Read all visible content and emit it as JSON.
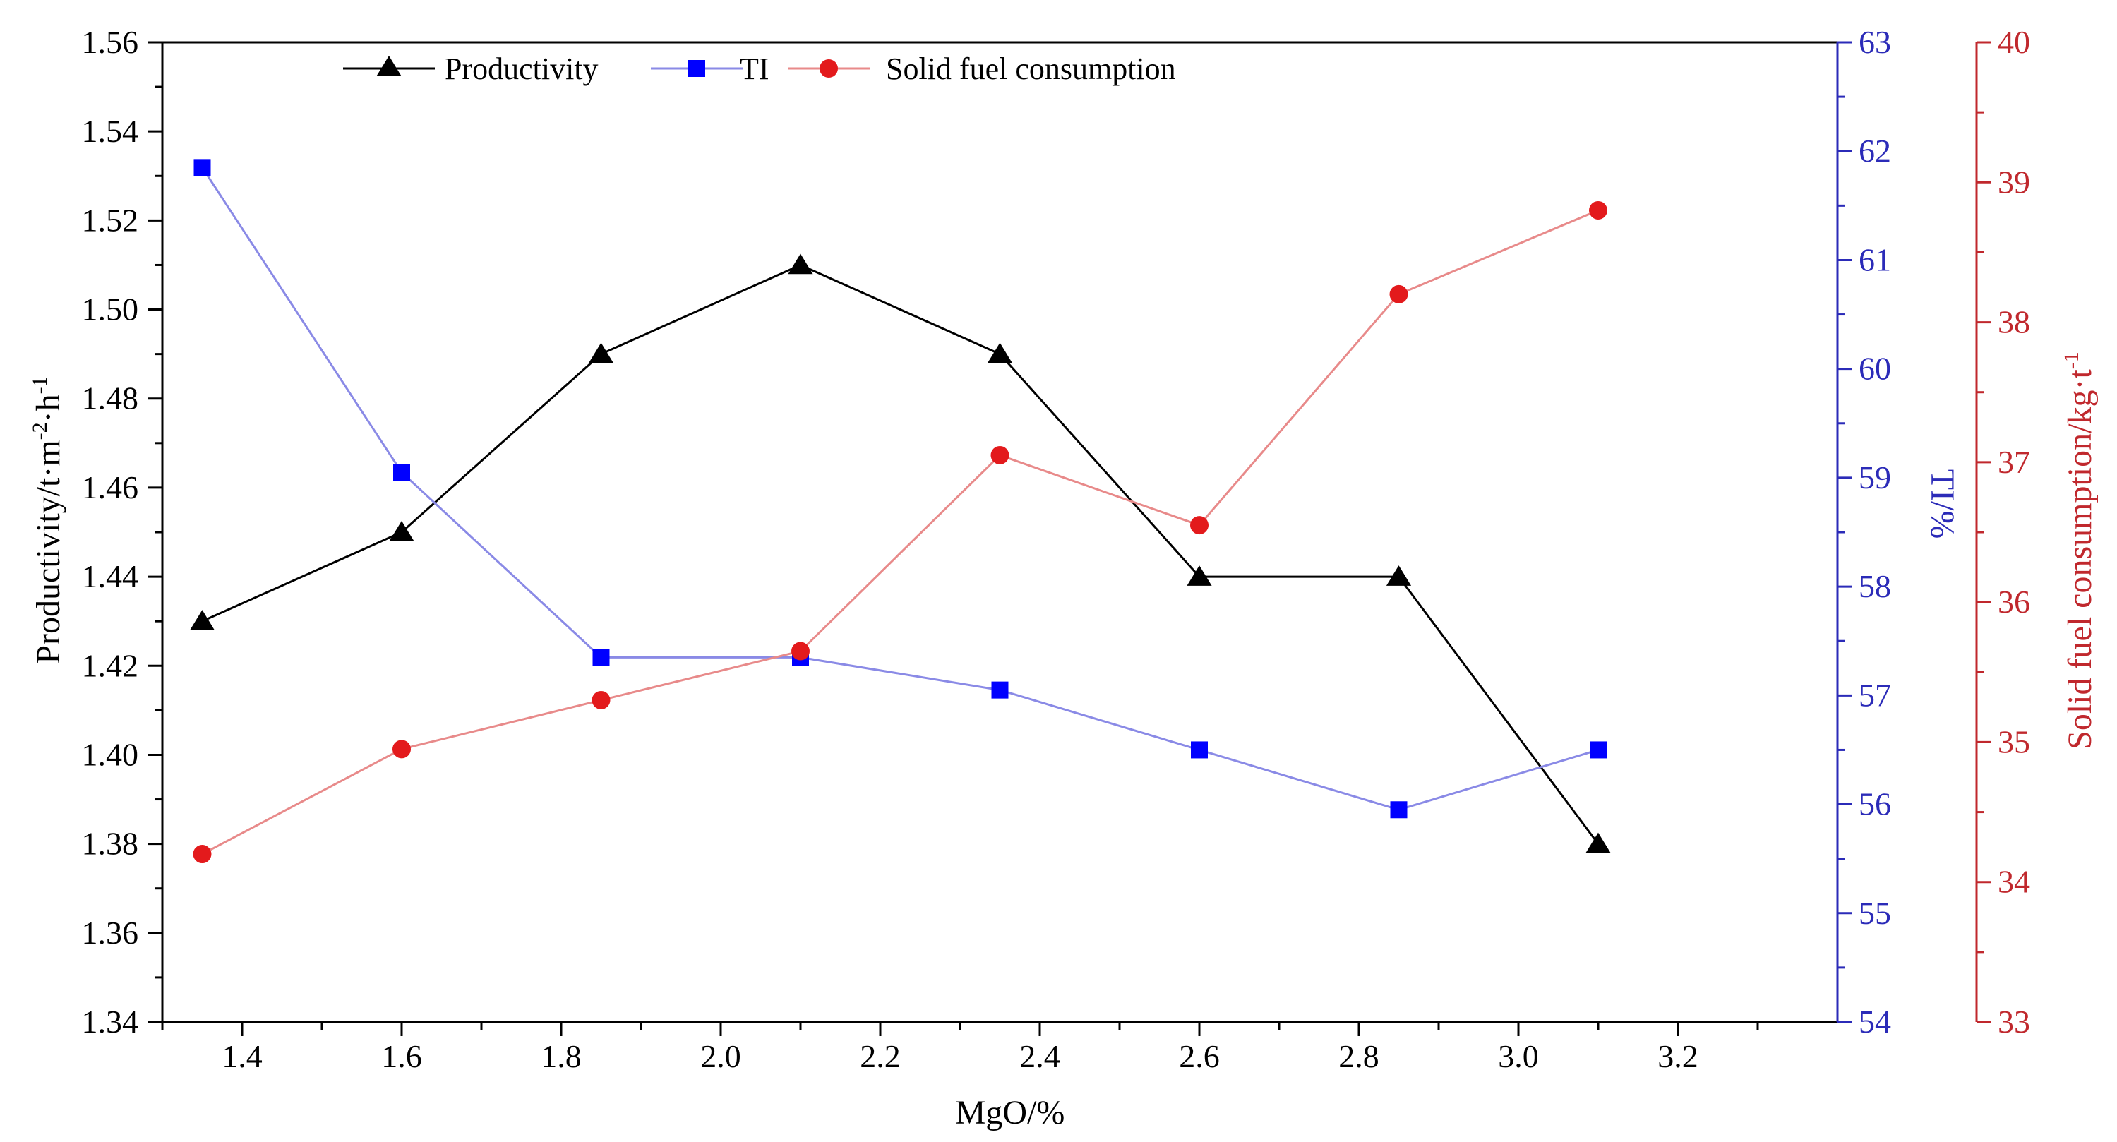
{
  "colors": {
    "productivity": "#000000",
    "ti": "#0000ff",
    "ti_line": "#8a8ae6",
    "ti_axis": "#2b2bb8",
    "fuel": "#e31a1c",
    "fuel_line": "#e88a8a",
    "fuel_axis": "#c0282d",
    "axis": "#000000"
  },
  "chart_data": {
    "type": "line",
    "xlabel": "MgO/%",
    "x": [
      1.35,
      1.6,
      1.85,
      2.1,
      2.35,
      2.6,
      2.85,
      3.1
    ],
    "xlim": [
      1.3,
      3.4
    ],
    "xticks": [
      1.4,
      1.6,
      1.8,
      2.0,
      2.2,
      2.4,
      2.6,
      2.8,
      3.0,
      3.2
    ],
    "xtick_labels": [
      "1.4",
      "1.6",
      "1.8",
      "2.0",
      "2.2",
      "2.4",
      "2.6",
      "2.8",
      "3.0",
      "3.2"
    ],
    "axes": {
      "left": {
        "label": "Productivity/t·m",
        "label_sup1": "-2",
        "label_mid": "·h",
        "label_sup2": "-1",
        "ylim": [
          1.34,
          1.56
        ],
        "ticks": [
          1.34,
          1.36,
          1.38,
          1.4,
          1.42,
          1.44,
          1.46,
          1.48,
          1.5,
          1.52,
          1.54,
          1.56
        ],
        "tick_labels": [
          "1.34",
          "1.36",
          "1.38",
          "1.40",
          "1.42",
          "1.44",
          "1.46",
          "1.48",
          "1.50",
          "1.52",
          "1.54",
          "1.56"
        ]
      },
      "right1": {
        "label": "TI/%",
        "ylim": [
          54,
          63
        ],
        "ticks": [
          54,
          55,
          56,
          57,
          58,
          59,
          60,
          61,
          62,
          63
        ],
        "tick_labels": [
          "54",
          "55",
          "56",
          "57",
          "58",
          "59",
          "60",
          "61",
          "62",
          "63"
        ]
      },
      "right2": {
        "label": "Solid fuel consumption/kg·t",
        "label_sup": "-1",
        "ylim": [
          33,
          40
        ],
        "ticks": [
          33,
          34,
          35,
          36,
          37,
          38,
          39,
          40
        ],
        "tick_labels": [
          "33",
          "34",
          "35",
          "36",
          "37",
          "38",
          "39",
          "40"
        ]
      }
    },
    "series": [
      {
        "name": "Productivity",
        "axis": "left",
        "marker": "triangle",
        "values": [
          1.43,
          1.45,
          1.49,
          1.51,
          1.49,
          1.44,
          1.44,
          1.38
        ]
      },
      {
        "name": "TI",
        "axis": "right1",
        "marker": "square",
        "values": [
          61.85,
          59.05,
          57.35,
          57.35,
          57.05,
          56.5,
          55.95,
          56.5
        ]
      },
      {
        "name": "Solid fuel consumption",
        "axis": "right2",
        "marker": "circle",
        "values": [
          34.2,
          34.95,
          35.3,
          35.65,
          37.05,
          36.55,
          38.2,
          38.8
        ]
      }
    ],
    "legend": {
      "position": "top-left",
      "labels": [
        "Productivity",
        "TI",
        "Solid fuel consumption"
      ]
    }
  }
}
